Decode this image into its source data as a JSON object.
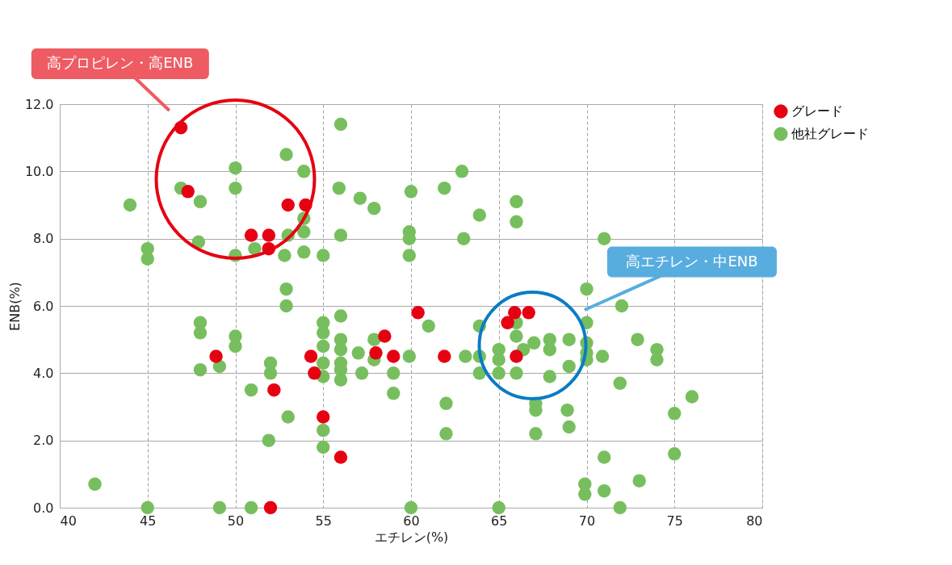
{
  "chart_data": {
    "type": "scatter",
    "xlabel": "エチレン(%)",
    "ylabel": "ENB(%)",
    "xlim": [
      40,
      80
    ],
    "xticks": [
      40,
      45,
      50,
      55,
      60,
      65,
      70,
      75,
      80
    ],
    "ylim": [
      0,
      12
    ],
    "yticks": [
      {
        "value": 0,
        "label": "0.0"
      },
      {
        "value": 2,
        "label": "2.0"
      },
      {
        "value": 4,
        "label": "4.0"
      },
      {
        "value": 6,
        "label": "6.0"
      },
      {
        "value": 8,
        "label": "8.0"
      },
      {
        "value": 10,
        "label": "10.0"
      },
      {
        "value": 12,
        "label": "12.0"
      }
    ],
    "grid": true,
    "legend": "right",
    "marker": "circle",
    "annotations": [
      "高プロピレン・高ENB",
      "高エチレン・中ENB"
    ],
    "series": [
      {
        "name": "グレード",
        "color": "#e60012",
        "x": [
          46.9,
          47.3,
          53.0,
          54.0,
          50.9,
          51.9,
          51.9,
          48.9,
          52.2,
          54.3,
          54.5,
          55.0,
          56.0,
          52.0,
          58.5,
          58.0,
          59.0,
          60.4,
          61.9,
          65.5,
          65.9,
          66.7,
          66.0
        ],
        "values": [
          11.3,
          9.4,
          9.0,
          9.0,
          8.1,
          8.1,
          7.7,
          4.5,
          3.5,
          4.5,
          4.0,
          2.7,
          1.5,
          0.0,
          5.1,
          4.6,
          4.5,
          5.8,
          4.5,
          5.5,
          5.8,
          5.8,
          4.5
        ]
      },
      {
        "name": "他社グレード",
        "color": "#77bf5e",
        "x": [
          52.9,
          50.0,
          53.9,
          46.9,
          50.0,
          44.0,
          48.0,
          53.9,
          47.9,
          45.0,
          45.0,
          51.1,
          50.0,
          53.0,
          52.8,
          53.9,
          52.9,
          52.9,
          56.0,
          55.9,
          57.1,
          57.9,
          60.0,
          61.9,
          62.9,
          63.9,
          53.9,
          56.0,
          59.9,
          59.9,
          63.0,
          59.9,
          55.0,
          48.0,
          48.0,
          50.0,
          50.0,
          49.1,
          48.0,
          52.0,
          52.0,
          50.9,
          53.0,
          51.9,
          42.0,
          45.0,
          49.1,
          50.9,
          55.0,
          55.0,
          55.0,
          55.0,
          55.0,
          56.0,
          56.0,
          56.0,
          56.0,
          56.0,
          56.0,
          57.0,
          57.2,
          57.9,
          57.9,
          59.0,
          59.0,
          59.9,
          61.0,
          63.1,
          63.9,
          63.9,
          65.0,
          65.0,
          65.0,
          62.0,
          62.0,
          55.0,
          55.0,
          60.0,
          65.0,
          72.0,
          66.0,
          70.0,
          66.0,
          66.4,
          67.0,
          67.9,
          67.9,
          69.0,
          70.0,
          70.0,
          70.0,
          70.9,
          72.9,
          74.0,
          74.0,
          63.9,
          66.0,
          69.0,
          67.9,
          71.9,
          76.0,
          67.1,
          67.1,
          68.9,
          69.0,
          67.1,
          75.0,
          75.0,
          71.0,
          73.0,
          69.9,
          69.9,
          71.0,
          71.9,
          66.0,
          66.0,
          71.0,
          70.0
        ],
        "values": [
          10.5,
          10.1,
          10.0,
          9.5,
          9.5,
          9.0,
          9.1,
          8.6,
          7.9,
          7.7,
          7.4,
          7.7,
          7.5,
          8.1,
          7.5,
          7.6,
          6.5,
          6.0,
          11.4,
          9.5,
          9.2,
          8.9,
          9.4,
          9.5,
          10.0,
          8.7,
          8.2,
          8.1,
          8.2,
          8.0,
          8.0,
          7.5,
          7.5,
          5.5,
          5.2,
          5.1,
          4.8,
          4.2,
          4.1,
          4.3,
          4.0,
          3.5,
          2.7,
          2.0,
          0.7,
          0.0,
          0.0,
          0.0,
          5.5,
          5.2,
          4.8,
          4.3,
          3.9,
          5.7,
          5.0,
          4.7,
          4.3,
          4.1,
          3.8,
          4.6,
          4.0,
          5.0,
          4.4,
          4.0,
          3.4,
          4.5,
          5.4,
          4.5,
          5.4,
          4.0,
          4.7,
          4.4,
          4.0,
          3.1,
          2.2,
          2.3,
          1.8,
          0.0,
          0.0,
          6.0,
          5.5,
          5.5,
          5.1,
          4.7,
          4.9,
          5.0,
          4.7,
          5.0,
          4.9,
          4.6,
          4.4,
          4.5,
          5.0,
          4.7,
          4.4,
          4.5,
          4.0,
          4.2,
          3.9,
          3.7,
          3.3,
          3.1,
          2.9,
          2.9,
          2.4,
          2.2,
          2.8,
          1.6,
          1.5,
          0.8,
          0.7,
          0.4,
          0.5,
          0.0,
          9.1,
          8.5,
          8.0,
          6.5
        ]
      }
    ]
  }
}
